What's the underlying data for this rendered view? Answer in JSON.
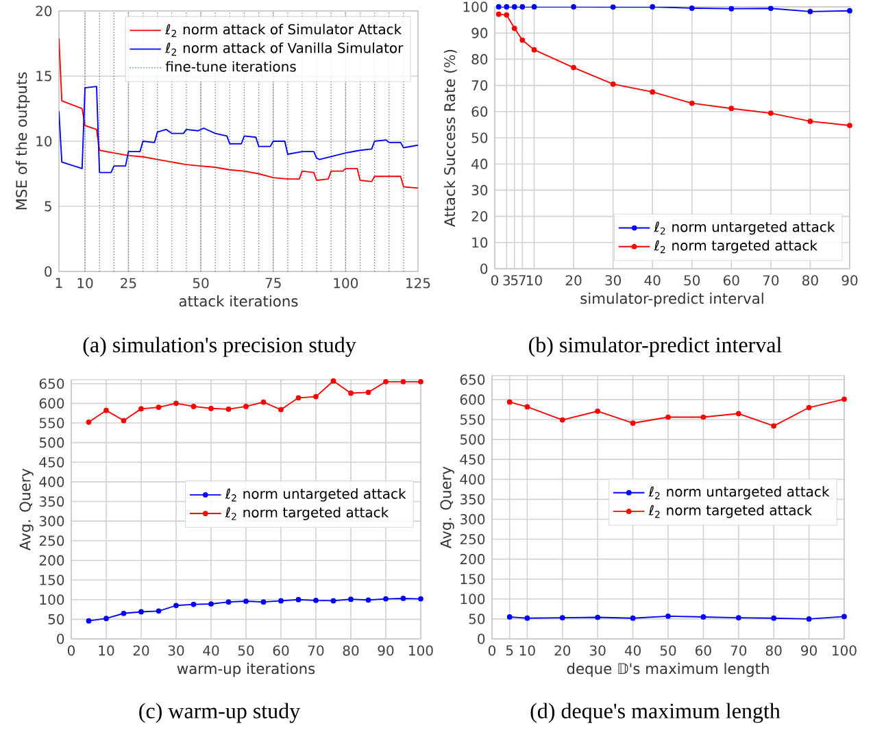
{
  "chart_data": [
    {
      "type": "line",
      "title": "(a) simulation's precision study",
      "xlabel": "attack iterations",
      "ylabel": "MSE of the outputs",
      "xlim": [
        1,
        125
      ],
      "ylim": [
        0,
        20
      ],
      "xticks": [
        1,
        10,
        25,
        50,
        75,
        100,
        125
      ],
      "yticks": [
        0,
        5,
        10,
        15,
        20
      ],
      "grid": true,
      "legend": "top right",
      "marker": "none",
      "line_style": "solid",
      "series": [
        {
          "name": "ℓ$_{2}$ norm attack of Simulator Attack",
          "color": "#ff0000",
          "x": [
            1,
            2,
            9,
            10,
            14,
            15,
            20,
            25,
            30,
            35,
            40,
            45,
            50,
            55,
            60,
            65,
            70,
            75,
            80,
            84,
            85,
            89,
            90,
            94,
            95,
            99,
            100,
            104,
            105,
            109,
            110,
            119,
            120,
            125
          ],
          "values": [
            17.9,
            13.1,
            12.5,
            11.2,
            10.9,
            9.3,
            9.1,
            8.9,
            8.8,
            8.6,
            8.4,
            8.2,
            8.1,
            8.0,
            7.8,
            7.7,
            7.5,
            7.2,
            7.1,
            7.1,
            7.7,
            7.6,
            7.0,
            7.1,
            7.7,
            7.7,
            7.9,
            7.9,
            7.0,
            6.9,
            7.3,
            7.3,
            6.5,
            6.4
          ]
        },
        {
          "name": "ℓ$_{2}$ norm attack of Vanilla Simulator",
          "color": "#0000ff",
          "x": [
            1,
            2,
            9,
            10,
            14,
            15,
            19,
            20,
            24,
            25,
            29,
            30,
            34,
            35,
            38,
            40,
            44,
            45,
            49,
            51,
            55,
            59,
            60,
            64,
            65,
            69,
            70,
            74,
            75,
            79,
            80,
            85,
            89,
            90,
            91,
            100,
            105,
            109,
            110,
            114,
            115,
            119,
            120,
            125
          ],
          "values": [
            12.3,
            8.4,
            7.9,
            14.1,
            14.2,
            7.6,
            7.6,
            8.1,
            8.1,
            9.2,
            9.2,
            10.0,
            9.9,
            10.7,
            10.9,
            10.6,
            10.6,
            10.9,
            10.8,
            11.0,
            10.6,
            10.4,
            9.8,
            9.8,
            10.4,
            10.3,
            9.6,
            9.6,
            10.0,
            10.0,
            9.0,
            9.2,
            9.2,
            8.7,
            8.6,
            9.1,
            9.3,
            9.4,
            10.0,
            10.1,
            9.9,
            9.9,
            9.5,
            9.7
          ]
        }
      ],
      "ref_lines": [
        {
          "axis": "x",
          "value": 10,
          "color": "#4f6e9c",
          "line_style": "dotted"
        },
        {
          "axis": "x",
          "value": 15,
          "color": "#4f6e9c",
          "line_style": "dotted"
        },
        {
          "axis": "x",
          "value": 20,
          "color": "#4f6e9c",
          "line_style": "dotted"
        },
        {
          "axis": "x",
          "value": 25,
          "color": "#4f6e9c",
          "line_style": "dotted"
        },
        {
          "axis": "x",
          "value": 30,
          "color": "#4f6e9c",
          "line_style": "dotted"
        },
        {
          "axis": "x",
          "value": 35,
          "color": "#4f6e9c",
          "line_style": "dotted"
        },
        {
          "axis": "x",
          "value": 40,
          "color": "#4f6e9c",
          "line_style": "dotted"
        },
        {
          "axis": "x",
          "value": 45,
          "color": "#4f6e9c",
          "line_style": "dotted"
        },
        {
          "axis": "x",
          "value": 50,
          "label": "fine-tune iterations",
          "color": "#4f6e9c",
          "line_style": "dotted"
        },
        {
          "axis": "x",
          "value": 55,
          "color": "#4f6e9c",
          "line_style": "dotted"
        },
        {
          "axis": "x",
          "value": 60,
          "color": "#4f6e9c",
          "line_style": "dotted"
        },
        {
          "axis": "x",
          "value": 65,
          "color": "#4f6e9c",
          "line_style": "dotted"
        },
        {
          "axis": "x",
          "value": 70,
          "color": "#4f6e9c",
          "line_style": "dotted"
        },
        {
          "axis": "x",
          "value": 75,
          "color": "#4f6e9c",
          "line_style": "dotted"
        },
        {
          "axis": "x",
          "value": 80,
          "color": "#4f6e9c",
          "line_style": "dotted"
        },
        {
          "axis": "x",
          "value": 85,
          "color": "#4f6e9c",
          "line_style": "dotted"
        },
        {
          "axis": "x",
          "value": 90,
          "color": "#4f6e9c",
          "line_style": "dotted"
        },
        {
          "axis": "x",
          "value": 95,
          "color": "#4f6e9c",
          "line_style": "dotted"
        },
        {
          "axis": "x",
          "value": 100,
          "color": "#4f6e9c",
          "line_style": "dotted"
        },
        {
          "axis": "x",
          "value": 105,
          "color": "#4f6e9c",
          "line_style": "dotted"
        },
        {
          "axis": "x",
          "value": 110,
          "color": "#4f6e9c",
          "line_style": "dotted"
        },
        {
          "axis": "x",
          "value": 115,
          "color": "#4f6e9c",
          "line_style": "dotted"
        },
        {
          "axis": "x",
          "value": 120,
          "color": "#4f6e9c",
          "line_style": "dotted"
        }
      ]
    },
    {
      "type": "line",
      "title": "(b) simulator-predict interval",
      "xlabel": "simulator-predict interval",
      "ylabel": "Attack Success Rate (%)",
      "xlim": [
        0,
        90
      ],
      "ylim": [
        0,
        100
      ],
      "xticks": [
        0,
        3,
        5,
        7,
        10,
        20,
        30,
        40,
        50,
        60,
        70,
        80,
        90
      ],
      "yticks": [
        0,
        10,
        20,
        30,
        40,
        50,
        60,
        70,
        80,
        90,
        100
      ],
      "grid": true,
      "legend": "bottom right",
      "marker": "circle",
      "line_style": "solid",
      "series": [
        {
          "name": "ℓ$_{2}$ norm untargeted attack",
          "color": "#0000ff",
          "x": [
            1,
            3,
            5,
            7,
            10,
            20,
            30,
            40,
            50,
            60,
            70,
            80,
            90
          ],
          "values": [
            100,
            100,
            100,
            100,
            100,
            100,
            99.9,
            100,
            99.5,
            99.3,
            99.4,
            98.2,
            98.5
          ]
        },
        {
          "name": "ℓ$_{2}$ norm targeted attack",
          "color": "#ff0000",
          "x": [
            1,
            3,
            5,
            7,
            10,
            20,
            30,
            40,
            50,
            60,
            70,
            80,
            90
          ],
          "values": [
            97.2,
            96.9,
            91.8,
            87.3,
            83.6,
            76.8,
            70.5,
            67.5,
            63.2,
            61.2,
            59.4,
            56.3,
            54.7
          ]
        }
      ]
    },
    {
      "type": "line",
      "title": "(c) warm-up study",
      "xlabel": "warm-up iterations",
      "ylabel": "Avg. Query",
      "xlim": [
        0,
        100
      ],
      "ylim": [
        0,
        660
      ],
      "xticks": [
        0,
        10,
        20,
        30,
        40,
        50,
        60,
        70,
        80,
        90,
        100
      ],
      "yticks": [
        0,
        50,
        100,
        150,
        200,
        250,
        300,
        350,
        400,
        450,
        500,
        550,
        600,
        650
      ],
      "grid": true,
      "legend": "right",
      "marker": "circle",
      "line_style": "solid",
      "series": [
        {
          "name": "ℓ$_{2}$ norm untargeted attack",
          "color": "#0000ff",
          "x": [
            5,
            10,
            15,
            20,
            25,
            30,
            35,
            40,
            45,
            50,
            55,
            60,
            65,
            70,
            75,
            80,
            85,
            90,
            95,
            100
          ],
          "values": [
            46,
            52,
            65,
            69,
            71,
            85,
            88,
            89,
            94,
            96,
            94,
            97,
            100,
            98,
            97,
            101,
            99,
            102,
            103,
            102
          ]
        },
        {
          "name": "ℓ$_{2}$ norm targeted attack",
          "color": "#ff0000",
          "x": [
            5,
            10,
            15,
            20,
            25,
            30,
            35,
            40,
            45,
            50,
            55,
            60,
            65,
            70,
            75,
            80,
            85,
            90,
            95,
            100
          ],
          "values": [
            552,
            582,
            556,
            586,
            590,
            600,
            592,
            587,
            585,
            592,
            603,
            584,
            614,
            617,
            657,
            626,
            628,
            655,
            655,
            655
          ]
        }
      ]
    },
    {
      "type": "line",
      "title": "(d) deque's maximum length",
      "xlabel": "deque 𝔻's maximum length",
      "ylabel": "Avg. Query",
      "xlim": [
        0,
        100
      ],
      "ylim": [
        0,
        660
      ],
      "xticks": [
        0,
        5,
        10,
        20,
        30,
        40,
        50,
        60,
        70,
        80,
        90,
        100
      ],
      "yticks": [
        0,
        50,
        100,
        150,
        200,
        250,
        300,
        350,
        400,
        450,
        500,
        550,
        600,
        650
      ],
      "grid": true,
      "legend": "right",
      "marker": "circle",
      "line_style": "solid",
      "series": [
        {
          "name": "ℓ$_{2}$ norm untargeted attack",
          "color": "#0000ff",
          "x": [
            5,
            10,
            20,
            30,
            40,
            50,
            60,
            70,
            80,
            90,
            100
          ],
          "values": [
            55,
            52,
            53,
            54,
            52,
            57,
            55,
            53,
            52,
            50,
            56
          ]
        },
        {
          "name": "ℓ$_{2}$ norm targeted attack",
          "color": "#ff0000",
          "x": [
            5,
            10,
            20,
            30,
            40,
            50,
            60,
            70,
            80,
            90,
            100
          ],
          "values": [
            594,
            582,
            549,
            571,
            541,
            556,
            556,
            565,
            534,
            580,
            601
          ]
        }
      ]
    }
  ]
}
